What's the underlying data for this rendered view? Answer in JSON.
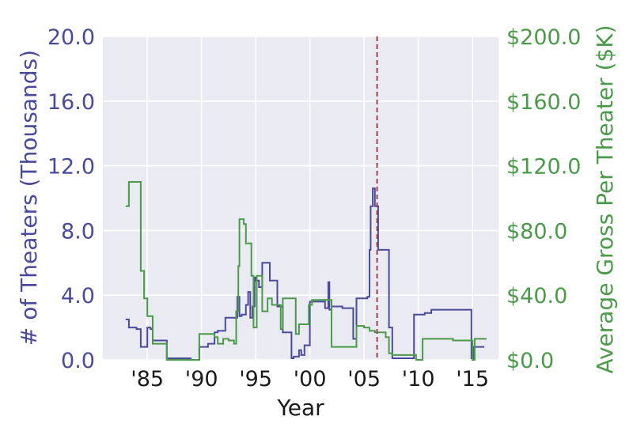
{
  "chart_data": {
    "type": "line",
    "xlabel": "Year",
    "ylabel_left": "# of Theaters (Thousands)",
    "ylabel_right": "Average Gross Per Theater ($K)",
    "xlim": [
      1980.9,
      2017.4
    ],
    "ylim_left": [
      0,
      20
    ],
    "ylim_right": [
      0,
      200
    ],
    "x_ticks": [
      1985,
      1990,
      1995,
      2000,
      2005,
      2010,
      2015
    ],
    "x_tick_labels": [
      "'85",
      "'90",
      "'95",
      "'00",
      "'05",
      "'10",
      "'15"
    ],
    "y_left_ticks": [
      "0.0",
      "4.0",
      "8.0",
      "12.0",
      "16.0",
      "20.0"
    ],
    "y_right_ticks": [
      "$0.0",
      "$40.0",
      "$80.0",
      "$120.0",
      "$160.0",
      "$200.0"
    ],
    "grid": true,
    "vline": {
      "x": 2006.2,
      "style": "dashed"
    },
    "colors": {
      "left": "#4a4a9a",
      "right": "#4a9a4a",
      "vline": "#a04050",
      "grid": "#ffffff",
      "bg": "#eaeaf2"
    },
    "series": [
      {
        "axis": "left",
        "x": [
          1983.0,
          1983.3,
          1984.0,
          1984.4,
          1985.0,
          1985.3,
          1985.5,
          1986.6,
          1986.8,
          1989.0,
          1989.8,
          1990.6,
          1991.2,
          1991.5,
          1992.2,
          1992.5,
          1993.3,
          1993.5,
          1993.7,
          1994.1,
          1994.3,
          1994.5,
          1994.7,
          1994.9,
          1995.0,
          1995.3,
          1995.6,
          1996.0,
          1996.3,
          1997.0,
          1997.5,
          1998.3,
          1998.5,
          1999.0,
          1999.2,
          1999.5,
          2000.0,
          2000.5,
          2001.0,
          2001.4,
          2001.7,
          2001.8,
          2002.0,
          2002.5,
          2003.0,
          2003.5,
          2004.0,
          2004.3,
          2005.0,
          2005.3,
          2005.5,
          2005.6,
          2005.8,
          2006.0,
          2006.3,
          2006.7,
          2007.0,
          2007.3,
          2007.6,
          2009.3,
          2009.6,
          2010.4,
          2010.6,
          2011.2,
          2011.5,
          2014.9,
          2015.1,
          2016.1
        ],
        "y": [
          2.5,
          2.0,
          1.9,
          0.8,
          2.0,
          1.9,
          1.2,
          1.2,
          0.1,
          0.0,
          0.8,
          1.0,
          1.7,
          1.8,
          2.6,
          2.6,
          3.9,
          2.7,
          2.8,
          3.4,
          4.2,
          2.6,
          3.3,
          5.1,
          4.9,
          4.5,
          6.0,
          6.0,
          4.9,
          3.3,
          1.7,
          0.1,
          0.2,
          0.6,
          0.3,
          0.9,
          3.6,
          3.6,
          3.6,
          3.2,
          4.8,
          3.1,
          3.3,
          3.3,
          3.2,
          3.2,
          1.3,
          3.8,
          3.8,
          3.9,
          6.8,
          9.5,
          10.6,
          9.5,
          6.8,
          6.8,
          6.8,
          2.0,
          0.1,
          0.1,
          2.8,
          2.8,
          2.9,
          3.1,
          3.1,
          0.1,
          0.8,
          0.8
        ]
      },
      {
        "axis": "right",
        "x": [
          1983.0,
          1983.3,
          1984.0,
          1984.4,
          1984.7,
          1985.0,
          1985.5,
          1986.8,
          1989.0,
          1989.8,
          1990.4,
          1991.2,
          1991.5,
          1992.0,
          1992.5,
          1993.0,
          1993.2,
          1993.4,
          1993.5,
          1993.9,
          1994.1,
          1994.4,
          1994.6,
          1994.8,
          1995.1,
          1995.6,
          1996.1,
          1996.5,
          1997.3,
          1997.5,
          1998.5,
          1998.7,
          1999.0,
          1999.5,
          1999.9,
          2000.2,
          2000.5,
          2001.0,
          2001.4,
          2001.8,
          2002.0,
          2003.6,
          2004.0,
          2004.3,
          2005.0,
          2005.5,
          2006.0,
          2006.3,
          2006.8,
          2007.0,
          2007.3,
          2007.6,
          2009.3,
          2009.8,
          2010.4,
          2012.2,
          2013.2,
          2015.0,
          2015.2,
          2016.3
        ],
        "y": [
          95,
          110,
          110,
          55,
          38,
          27,
          10,
          0,
          0,
          16,
          16,
          14,
          10,
          13,
          12,
          10,
          30,
          58,
          87,
          84,
          72,
          72,
          52,
          20,
          52,
          30,
          38,
          34,
          19,
          38,
          38,
          16,
          22,
          22,
          34,
          37,
          37,
          37,
          37,
          37,
          8,
          8,
          8,
          21,
          20,
          18,
          17,
          17,
          17,
          14,
          4,
          3,
          3,
          0,
          13,
          13,
          12,
          0,
          13,
          13
        ]
      }
    ]
  }
}
